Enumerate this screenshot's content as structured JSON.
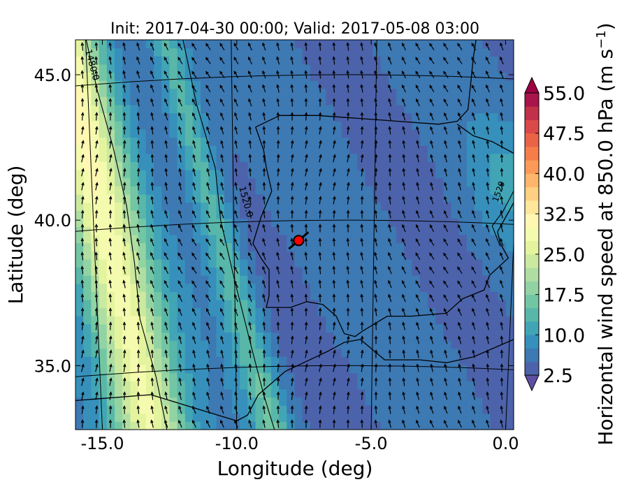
{
  "chart_data": {
    "type": "heatmap",
    "title": "Init: 2017-04-30 00:00; Valid: 2017-05-08 03:00",
    "xlabel": "Longitude (deg)",
    "ylabel": "Latitude (deg)",
    "xlim": [
      -16.0,
      0.3
    ],
    "ylim": [
      32.8,
      46.2
    ],
    "x_ticks": [
      -15.0,
      -10.0,
      -5.0,
      0.0
    ],
    "x_tick_labels": [
      "-15.0",
      "-10.0",
      "-5.0",
      "0.0"
    ],
    "y_ticks": [
      35.0,
      40.0,
      45.0
    ],
    "y_tick_labels": [
      "35.0",
      "40.0",
      "45.0"
    ],
    "colorbar": {
      "label": "Horizontal wind speed at 850.0 hPa (m s$^{-1}$)",
      "label_main": "Horizontal wind speed at 850.0 hPa (m s",
      "label_exp": "−1",
      "label_end": ")",
      "min": 2.5,
      "max": 55.0,
      "step": 2.5,
      "ticks": [
        2.5,
        10.0,
        17.5,
        25.0,
        32.5,
        40.0,
        47.5,
        55.0
      ],
      "tick_labels": [
        "2.5",
        "10.0",
        "17.5",
        "25.0",
        "32.5",
        "40.0",
        "47.5",
        "55.0"
      ],
      "extend": "both",
      "colors": [
        "#5e4fa2",
        "#4c63ab",
        "#3d79b3",
        "#3690bb",
        "#41a5b6",
        "#58b7a8",
        "#73c6a4",
        "#92d3a4",
        "#b0dea2",
        "#cbe99f",
        "#e4f49e",
        "#f5fbae",
        "#fff7b2",
        "#fee79a",
        "#fed081",
        "#fdb66a",
        "#fb9a58",
        "#f67d4a",
        "#ea6347",
        "#da4a4a",
        "#c3304a",
        "#a8144b",
        "#9e0142"
      ]
    },
    "marker": {
      "lon": -7.7,
      "lat": 39.3,
      "color": "#ff0000",
      "label": ""
    },
    "contour_labels": [
      "1480.0",
      "1520.0",
      "1520"
    ]
  }
}
